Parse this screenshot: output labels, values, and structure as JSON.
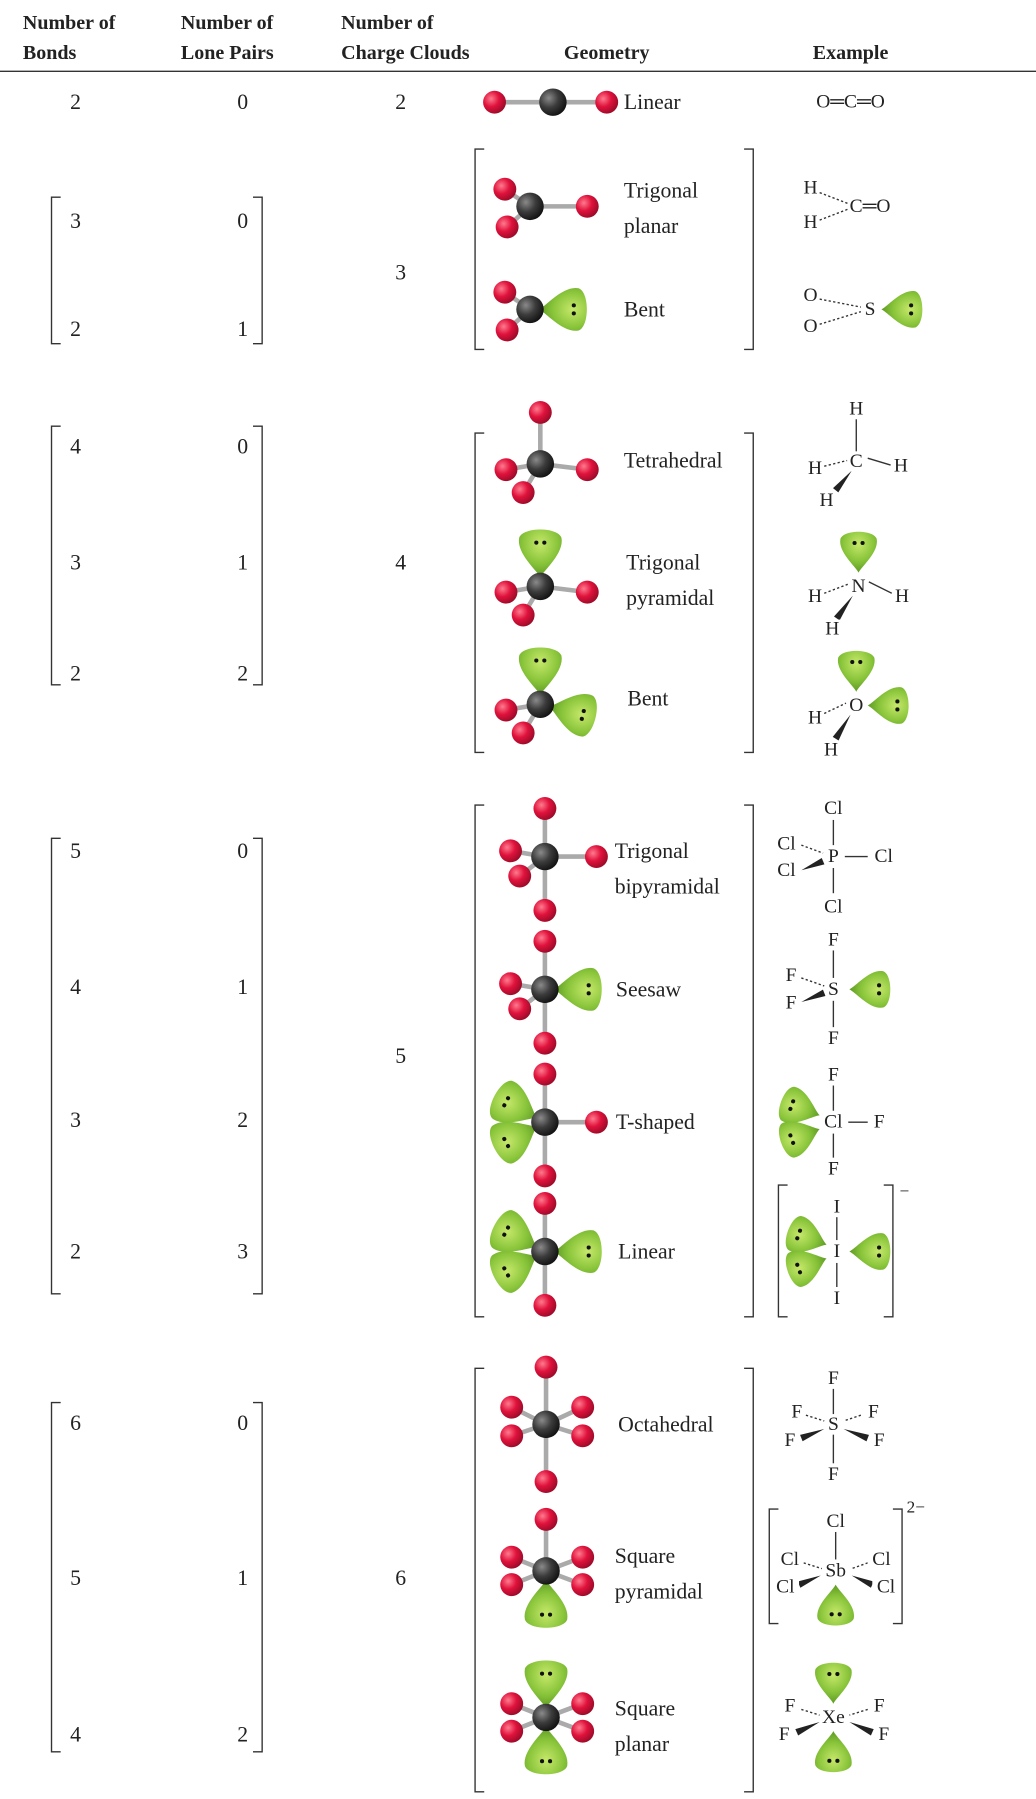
{
  "header": {
    "columns": [
      [
        "Number of",
        "Bonds"
      ],
      [
        "Number of",
        "Lone Pairs"
      ],
      [
        "Number of",
        "Charge Clouds"
      ],
      [
        "Geometry"
      ],
      [
        "Example"
      ]
    ]
  },
  "groups": [
    {
      "charge_clouds": 2,
      "rows": [
        {
          "bonds": 2,
          "lone_pairs": 0,
          "geometry": [
            "Linear"
          ],
          "example": [
            "O═C═O"
          ]
        }
      ]
    },
    {
      "charge_clouds": 3,
      "rows": [
        {
          "bonds": 3,
          "lone_pairs": 0,
          "geometry": [
            "Trigonal",
            "planar"
          ],
          "example": [
            "H",
            "H",
            "C═O"
          ]
        },
        {
          "bonds": 2,
          "lone_pairs": 1,
          "geometry": [
            "Bent"
          ],
          "example": [
            "O",
            "O",
            "S"
          ]
        }
      ]
    },
    {
      "charge_clouds": 4,
      "rows": [
        {
          "bonds": 4,
          "lone_pairs": 0,
          "geometry": [
            "Tetrahedral"
          ],
          "example": [
            "H",
            "C",
            "H",
            "H",
            "H"
          ]
        },
        {
          "bonds": 3,
          "lone_pairs": 1,
          "geometry": [
            "Trigonal",
            "pyramidal"
          ],
          "example": [
            "N",
            "H",
            "H",
            "H"
          ]
        },
        {
          "bonds": 2,
          "lone_pairs": 2,
          "geometry": [
            "Bent"
          ],
          "example": [
            "O",
            "H",
            "H"
          ]
        }
      ]
    },
    {
      "charge_clouds": 5,
      "rows": [
        {
          "bonds": 5,
          "lone_pairs": 0,
          "geometry": [
            "Trigonal",
            "bipyramidal"
          ],
          "example": [
            "Cl",
            "Cl",
            "P",
            "Cl",
            "Cl",
            "Cl"
          ]
        },
        {
          "bonds": 4,
          "lone_pairs": 1,
          "geometry": [
            "Seesaw"
          ],
          "example": [
            "F",
            "F",
            "S",
            "F",
            "F"
          ]
        },
        {
          "bonds": 3,
          "lone_pairs": 2,
          "geometry": [
            "T-shaped"
          ],
          "example": [
            "F",
            "Cl",
            "F",
            "F"
          ]
        },
        {
          "bonds": 2,
          "lone_pairs": 3,
          "geometry": [
            "Linear"
          ],
          "example": [
            "I",
            "I",
            "I",
            "−"
          ]
        }
      ]
    },
    {
      "charge_clouds": 6,
      "rows": [
        {
          "bonds": 6,
          "lone_pairs": 0,
          "geometry": [
            "Octahedral"
          ],
          "example": [
            "F",
            "F",
            "F",
            "S",
            "F",
            "F",
            "F"
          ]
        },
        {
          "bonds": 5,
          "lone_pairs": 1,
          "geometry": [
            "Square",
            "pyramidal"
          ],
          "example": [
            "Cl",
            "Cl",
            "Cl",
            "Sb",
            "Cl",
            "Cl",
            "2−"
          ]
        },
        {
          "bonds": 4,
          "lone_pairs": 2,
          "geometry": [
            "Square",
            "planar"
          ],
          "example": [
            "F",
            "F",
            "Xe",
            "F",
            "F"
          ]
        }
      ]
    }
  ]
}
